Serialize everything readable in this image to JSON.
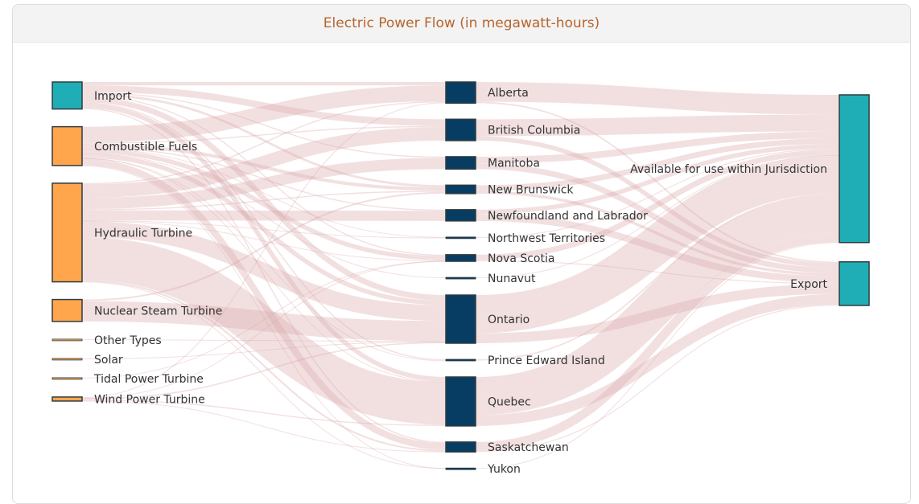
{
  "title": "Electric Power Flow (in megawatt-hours)",
  "colors": {
    "source": "#ffa64d",
    "import": "#20aeb6",
    "region": "#083d63",
    "destination": "#20aeb6",
    "link": "#d9a5aa",
    "node_stroke": "#2f3b3f"
  },
  "chart_data": {
    "type": "sankey",
    "nodes": [
      {
        "id": "import",
        "name": "Import",
        "group": "source"
      },
      {
        "id": "combustible",
        "name": "Combustible Fuels",
        "group": "source"
      },
      {
        "id": "hydraulic",
        "name": "Hydraulic Turbine",
        "group": "source"
      },
      {
        "id": "nuclear",
        "name": "Nuclear Steam Turbine",
        "group": "source"
      },
      {
        "id": "other",
        "name": "Other Types",
        "group": "source"
      },
      {
        "id": "solar",
        "name": "Solar",
        "group": "source"
      },
      {
        "id": "tidal",
        "name": "Tidal Power Turbine",
        "group": "source"
      },
      {
        "id": "wind",
        "name": "Wind Power Turbine",
        "group": "source"
      },
      {
        "id": "alberta",
        "name": "Alberta",
        "group": "region"
      },
      {
        "id": "bc",
        "name": "British Columbia",
        "group": "region"
      },
      {
        "id": "manitoba",
        "name": "Manitoba",
        "group": "region"
      },
      {
        "id": "nb",
        "name": "New Brunswick",
        "group": "region"
      },
      {
        "id": "nl",
        "name": "Newfoundland and Labrador",
        "group": "region"
      },
      {
        "id": "nwt",
        "name": "Northwest Territories",
        "group": "region"
      },
      {
        "id": "ns",
        "name": "Nova Scotia",
        "group": "region"
      },
      {
        "id": "nunavut",
        "name": "Nunavut",
        "group": "region"
      },
      {
        "id": "ontario",
        "name": "Ontario",
        "group": "region"
      },
      {
        "id": "pei",
        "name": "Prince Edward Island",
        "group": "region"
      },
      {
        "id": "quebec",
        "name": "Quebec",
        "group": "region"
      },
      {
        "id": "sask",
        "name": "Saskatchewan",
        "group": "region"
      },
      {
        "id": "yukon",
        "name": "Yukon",
        "group": "region"
      },
      {
        "id": "available",
        "name": "Available for use within Jurisdiction",
        "group": "destination"
      },
      {
        "id": "export",
        "name": "Export",
        "group": "destination"
      }
    ],
    "links": [
      {
        "source": "import",
        "target": "alberta",
        "value": 3
      },
      {
        "source": "import",
        "target": "bc",
        "value": 6
      },
      {
        "source": "import",
        "target": "manitoba",
        "value": 1
      },
      {
        "source": "import",
        "target": "nb",
        "value": 2
      },
      {
        "source": "import",
        "target": "ns",
        "value": 1
      },
      {
        "source": "import",
        "target": "ontario",
        "value": 5
      },
      {
        "source": "import",
        "target": "pei",
        "value": 1
      },
      {
        "source": "import",
        "target": "quebec",
        "value": 4
      },
      {
        "source": "import",
        "target": "sask",
        "value": 1
      },
      {
        "source": "combustible",
        "target": "alberta",
        "value": 14
      },
      {
        "source": "combustible",
        "target": "bc",
        "value": 1
      },
      {
        "source": "combustible",
        "target": "nb",
        "value": 3
      },
      {
        "source": "combustible",
        "target": "nl",
        "value": 1
      },
      {
        "source": "combustible",
        "target": "nwt",
        "value": 0.5
      },
      {
        "source": "combustible",
        "target": "ns",
        "value": 4
      },
      {
        "source": "combustible",
        "target": "nunavut",
        "value": 0.3
      },
      {
        "source": "combustible",
        "target": "ontario",
        "value": 4
      },
      {
        "source": "combustible",
        "target": "pei",
        "value": 0.1
      },
      {
        "source": "combustible",
        "target": "quebec",
        "value": 0.5
      },
      {
        "source": "combustible",
        "target": "sask",
        "value": 6
      },
      {
        "source": "combustible",
        "target": "yukon",
        "value": 0.1
      },
      {
        "source": "hydraulic",
        "target": "alberta",
        "value": 1
      },
      {
        "source": "hydraulic",
        "target": "bc",
        "value": 12
      },
      {
        "source": "hydraulic",
        "target": "manitoba",
        "value": 10
      },
      {
        "source": "hydraulic",
        "target": "nb",
        "value": 1
      },
      {
        "source": "hydraulic",
        "target": "nl",
        "value": 9
      },
      {
        "source": "hydraulic",
        "target": "nwt",
        "value": 0.3
      },
      {
        "source": "hydraulic",
        "target": "ns",
        "value": 0.5
      },
      {
        "source": "hydraulic",
        "target": "ontario",
        "value": 14
      },
      {
        "source": "hydraulic",
        "target": "quebec",
        "value": 38
      },
      {
        "source": "hydraulic",
        "target": "sask",
        "value": 1.5
      },
      {
        "source": "hydraulic",
        "target": "yukon",
        "value": 0.3
      },
      {
        "source": "nuclear",
        "target": "nb",
        "value": 1.5
      },
      {
        "source": "nuclear",
        "target": "ontario",
        "value": 18
      },
      {
        "source": "other",
        "target": "ontario",
        "value": 0.2
      },
      {
        "source": "solar",
        "target": "ontario",
        "value": 0.4
      },
      {
        "source": "tidal",
        "target": "ns",
        "value": 0.05
      },
      {
        "source": "wind",
        "target": "alberta",
        "value": 0.8
      },
      {
        "source": "wind",
        "target": "ontario",
        "value": 1.2
      },
      {
        "source": "wind",
        "target": "quebec",
        "value": 1
      },
      {
        "source": "wind",
        "target": "sask",
        "value": 0.3
      },
      {
        "source": "wind",
        "target": "ns",
        "value": 0.3
      },
      {
        "source": "alberta",
        "target": "available",
        "value": 17.5
      },
      {
        "source": "alberta",
        "target": "export",
        "value": 1.3
      },
      {
        "source": "bc",
        "target": "available",
        "value": 15
      },
      {
        "source": "bc",
        "target": "export",
        "value": 4
      },
      {
        "source": "manitoba",
        "target": "available",
        "value": 6
      },
      {
        "source": "manitoba",
        "target": "export",
        "value": 5
      },
      {
        "source": "nb",
        "target": "available",
        "value": 5
      },
      {
        "source": "nb",
        "target": "export",
        "value": 2.5
      },
      {
        "source": "nl",
        "target": "available",
        "value": 4
      },
      {
        "source": "nl",
        "target": "export",
        "value": 6
      },
      {
        "source": "nwt",
        "target": "available",
        "value": 0.8
      },
      {
        "source": "ns",
        "target": "available",
        "value": 5
      },
      {
        "source": "ns",
        "target": "export",
        "value": 0.85
      },
      {
        "source": "nunavut",
        "target": "available",
        "value": 0.3
      },
      {
        "source": "ontario",
        "target": "available",
        "value": 34
      },
      {
        "source": "ontario",
        "target": "export",
        "value": 8.8
      },
      {
        "source": "pei",
        "target": "available",
        "value": 1.2
      },
      {
        "source": "quebec",
        "target": "available",
        "value": 34
      },
      {
        "source": "quebec",
        "target": "export",
        "value": 9.5
      },
      {
        "source": "sask",
        "target": "available",
        "value": 8
      },
      {
        "source": "sask",
        "target": "export",
        "value": 0.8
      },
      {
        "source": "yukon",
        "target": "available",
        "value": 0.4
      }
    ]
  }
}
